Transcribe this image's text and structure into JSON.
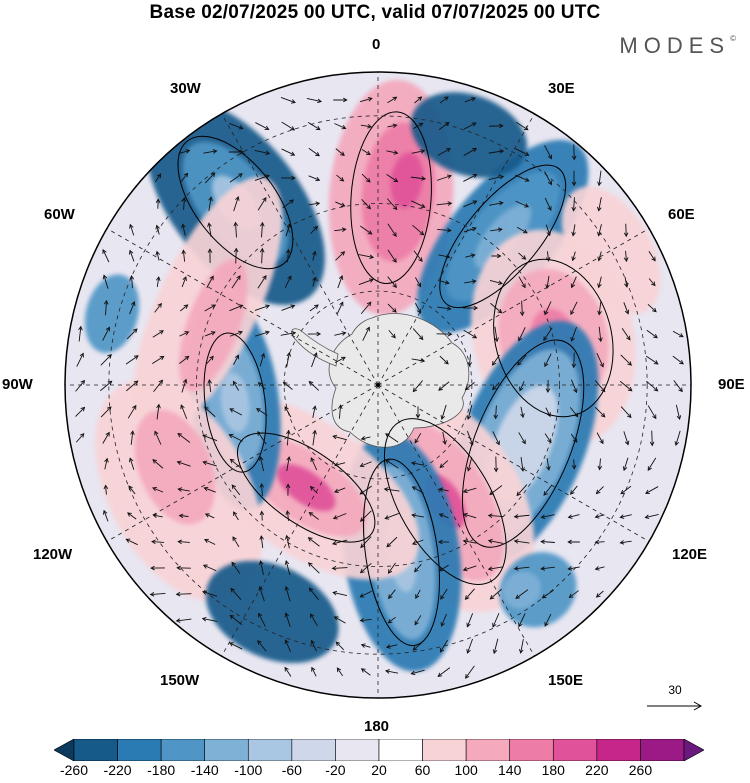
{
  "title": "Base 02/07/2025 00 UTC, valid 07/07/2025 00 UTC",
  "brand": "MODES",
  "brand_mark": "©",
  "longitude_labels": {
    "lon_0": "0",
    "lon_30e": "30E",
    "lon_60e": "60E",
    "lon_90e": "90E",
    "lon_120e": "120E",
    "lon_150e": "150E",
    "lon_180": "180",
    "lon_150w": "150W",
    "lon_120w": "120W",
    "lon_90w": "90W",
    "lon_60w": "60W",
    "lon_30w": "30W"
  },
  "reference_vector": {
    "value": "30"
  },
  "colorbar": {
    "ticks": [
      "-260",
      "-220",
      "-180",
      "-140",
      "-100",
      "-60",
      "-20",
      "20",
      "60",
      "100",
      "140",
      "180",
      "220",
      "260"
    ],
    "colors": [
      "#0b3a5e",
      "#165a8a",
      "#2a7ab3",
      "#4f96c6",
      "#7fb0d6",
      "#a9c6e2",
      "#cfd8ea",
      "#e7e6f1",
      "#ffffff",
      "#f8d3d6",
      "#f4a9bd",
      "#ed7da6",
      "#e0539a",
      "#c6268a",
      "#9c1a86",
      "#6a1a7e"
    ],
    "field_colors": {
      "land": "#e9e9e9",
      "coast": "#555555",
      "grid": "#222222",
      "arrow": "#111111"
    }
  }
}
